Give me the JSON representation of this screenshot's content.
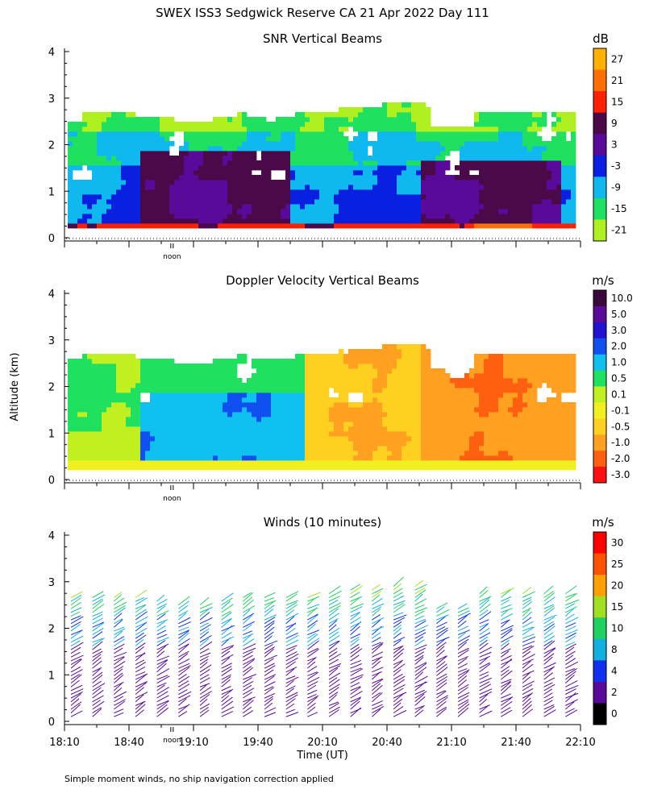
{
  "figure_title": "SWEX ISS3 Sedgwick Reserve CA  21 Apr 2022 Day 111",
  "ylabel": "Altitude (km)",
  "xlabel": "Time (UT)",
  "footnote": "Simple moment winds, no ship navigation correction applied",
  "noon_label": "noon",
  "chart_data": [
    {
      "type": "heatmap",
      "title": "SNR Vertical Beams",
      "units": "dB",
      "yticks": [
        "0",
        "1",
        "2",
        "3",
        "4"
      ],
      "ylim": [
        0,
        4
      ],
      "x_range_minutes": [
        0,
        240
      ],
      "colorbar": {
        "labels": [
          "27",
          "21",
          "15",
          "9",
          "3",
          "-3",
          "-9",
          "-15",
          "-21"
        ],
        "colors": [
          "#ffb000",
          "#ff7000",
          "#ff2000",
          "#4a0a4a",
          "#5a0a9a",
          "#0a20e0",
          "#10b8f0",
          "#20e060",
          "#b0f020"
        ]
      }
    },
    {
      "type": "heatmap",
      "title": "Doppler Velocity Vertical Beams",
      "units": "m/s",
      "yticks": [
        "0",
        "1",
        "2",
        "3",
        "4"
      ],
      "ylim": [
        0,
        4
      ],
      "x_range_minutes": [
        0,
        240
      ],
      "colorbar": {
        "labels": [
          "10.0",
          "5.0",
          "3.0",
          "2.0",
          "1.0",
          "0.5",
          "0.1",
          "-0.1",
          "-0.5",
          "-1.0",
          "-2.0",
          "-3.0"
        ],
        "colors": [
          "#3a0a3a",
          "#5a0a9a",
          "#2010d0",
          "#1050f0",
          "#10c0f0",
          "#20e060",
          "#c0f020",
          "#f0f020",
          "#ffd020",
          "#ffa020",
          "#ff6010",
          "#ff1010"
        ]
      }
    },
    {
      "type": "wind_barbs",
      "title": "Winds (10 minutes)",
      "units": "m/s",
      "yticks": [
        "0",
        "1",
        "2",
        "3",
        "4"
      ],
      "ylim": [
        0,
        4
      ],
      "xticks": [
        "18:10",
        "18:40",
        "19:10",
        "19:40",
        "20:10",
        "20:40",
        "21:10",
        "21:40",
        "22:10"
      ],
      "x_range_minutes": [
        0,
        240
      ],
      "colorbar": {
        "labels": [
          "30",
          "25",
          "20",
          "15",
          "10",
          "8",
          "4",
          "2",
          "0"
        ],
        "colors": [
          "#ff0000",
          "#ff5000",
          "#ffa000",
          "#a0e020",
          "#20d060",
          "#10b0e0",
          "#1030f0",
          "#5a0a9a",
          "#000000"
        ]
      }
    }
  ]
}
